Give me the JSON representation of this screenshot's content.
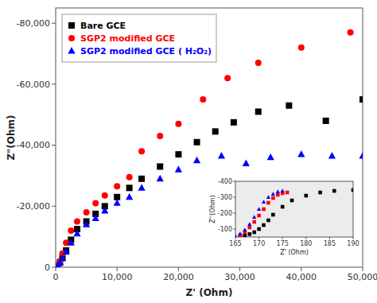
{
  "chart_data": [
    {
      "type": "scatter",
      "xlabel": "Z' (Ohm)",
      "ylabel": "Z\"(Ohm)",
      "xlim": [
        0,
        50000
      ],
      "ylim": [
        0,
        -85000
      ],
      "xticks": [
        0,
        {
          "value": 10000,
          "label": "10,000"
        },
        {
          "value": 20000,
          "label": "20,000"
        },
        {
          "value": 30000,
          "label": "30,000"
        },
        {
          "value": 40000,
          "label": "40,000"
        },
        {
          "value": 50000,
          "label": "50,000"
        }
      ],
      "yticks": [
        0,
        {
          "value": -20000,
          "label": "-20,000"
        },
        {
          "value": -40000,
          "label": "-40,000"
        },
        {
          "value": -60000,
          "label": "-60,000"
        },
        {
          "value": -80000,
          "label": "-80,000"
        }
      ],
      "grid": false,
      "legend": "upper left",
      "series": [
        {
          "name": "Bare GCE",
          "color": "black",
          "marker": "square",
          "x": [
            200,
            400,
            700,
            1100,
            1700,
            2500,
            3500,
            5000,
            6500,
            8000,
            10000,
            12000,
            14000,
            17000,
            20000,
            23000,
            26000,
            29000,
            33000,
            38000,
            44000,
            50000
          ],
          "values": [
            0,
            -500,
            -1500,
            -3000,
            -5500,
            -9000,
            -12500,
            -15000,
            -17500,
            -20000,
            -23000,
            -26000,
            -29000,
            -33000,
            -37000,
            -41000,
            -44500,
            -47500,
            -51000,
            -53000,
            -48000,
            -55000
          ]
        },
        {
          "name": "SGP2 modified GCE",
          "color": "red",
          "marker": "circle",
          "x": [
            200,
            400,
            700,
            1100,
            1700,
            2500,
            3500,
            5000,
            6500,
            8000,
            10000,
            12000,
            14000,
            17000,
            20000,
            24000,
            28000,
            33000,
            40000,
            48000
          ],
          "values": [
            0,
            -500,
            -2000,
            -4500,
            -8000,
            -12000,
            -15000,
            -18000,
            -21000,
            -23500,
            -26500,
            -29500,
            -38000,
            -43000,
            -47000,
            -55000,
            -62000,
            -67000,
            -72000,
            -77000
          ]
        },
        {
          "name": "SGP2 modified GCE ( H₂O₂)",
          "color": "blue",
          "marker": "triangle",
          "x": [
            200,
            400,
            700,
            1100,
            1700,
            2500,
            3500,
            5000,
            6500,
            8000,
            10000,
            12000,
            14000,
            17000,
            20000,
            23000,
            27000,
            31000,
            35000,
            40000,
            45000,
            50000
          ],
          "values": [
            0,
            -500,
            -1500,
            -3000,
            -5000,
            -8000,
            -11000,
            -14000,
            -16000,
            -18500,
            -21000,
            -23000,
            -26000,
            -29000,
            -32000,
            -35000,
            -36500,
            -34000,
            -36000,
            -37000,
            -36500,
            -36500
          ]
        }
      ]
    },
    {
      "type": "scatter",
      "xlabel": "Z' (Ohm)",
      "ylabel": "Z''(Ohm)",
      "xlim": [
        165,
        190
      ],
      "ylim": [
        -50,
        -400
      ],
      "xticks": [
        165,
        170,
        175,
        180,
        185,
        190
      ],
      "yticks": [
        -100,
        -200,
        -300,
        -400
      ],
      "grid": false,
      "series": [
        {
          "color": "black",
          "marker": "square",
          "x": [
            166,
            167,
            168,
            169,
            170,
            171,
            172,
            173,
            175,
            177,
            180,
            183,
            186,
            190
          ],
          "values": [
            -55,
            -60,
            -68,
            -80,
            -100,
            -125,
            -155,
            -190,
            -240,
            -280,
            -310,
            -330,
            -340,
            -345
          ]
        },
        {
          "color": "red",
          "marker": "square",
          "x": [
            166,
            167,
            168,
            169,
            170,
            171,
            172,
            173,
            174,
            175,
            176
          ],
          "values": [
            -60,
            -80,
            -110,
            -145,
            -185,
            -225,
            -265,
            -295,
            -315,
            -325,
            -330
          ]
        },
        {
          "color": "blue",
          "marker": "triangle",
          "x": [
            165,
            166,
            167,
            168,
            169,
            170,
            171,
            172,
            173,
            174,
            175
          ],
          "values": [
            -55,
            -70,
            -95,
            -130,
            -175,
            -225,
            -270,
            -300,
            -320,
            -335,
            -340
          ]
        }
      ]
    }
  ]
}
